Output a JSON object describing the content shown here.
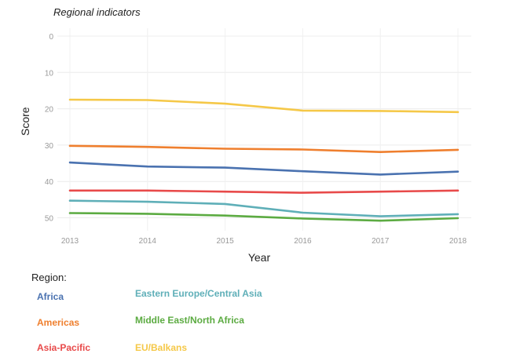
{
  "chart_data": {
    "type": "line",
    "title": "Regional indicators",
    "xlabel": "Year",
    "ylabel": "Score",
    "x": [
      2013,
      2014,
      2015,
      2016,
      2017,
      2018
    ],
    "ylim": [
      0,
      52
    ],
    "y_inverted": true,
    "y_ticks": [
      0,
      10,
      20,
      30,
      40,
      50
    ],
    "grid": true,
    "legend_title": "Region:",
    "legend_position": "bottom",
    "series": [
      {
        "name": "Africa",
        "color": "#4a72b0",
        "values": [
          34.8,
          35.9,
          36.2,
          37.2,
          38.1,
          37.3
        ]
      },
      {
        "name": "Americas",
        "color": "#ef7f2e",
        "values": [
          30.2,
          30.5,
          31.0,
          31.2,
          31.9,
          31.3
        ]
      },
      {
        "name": "Asia-Pacific",
        "color": "#e84a4a",
        "values": [
          42.5,
          42.5,
          42.8,
          43.1,
          42.8,
          42.5
        ]
      },
      {
        "name": "Eastern Europe/Central Asia",
        "color": "#5fafb8",
        "values": [
          45.3,
          45.6,
          46.2,
          48.6,
          49.6,
          49.0
        ]
      },
      {
        "name": "Middle East/North Africa",
        "color": "#5cab42",
        "values": [
          48.7,
          48.9,
          49.4,
          50.2,
          50.8,
          50.1
        ]
      },
      {
        "name": "EU/Balkans",
        "color": "#f5c848",
        "values": [
          17.5,
          17.6,
          18.6,
          20.5,
          20.6,
          20.9
        ]
      }
    ]
  }
}
